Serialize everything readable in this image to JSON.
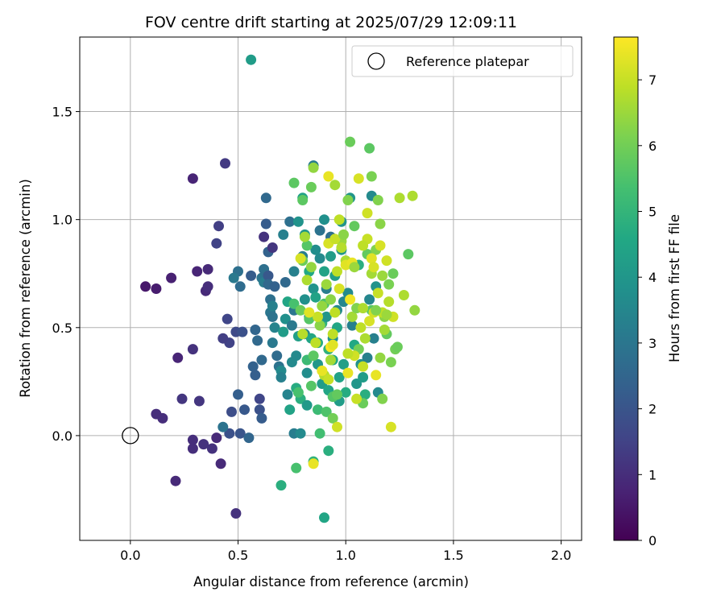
{
  "chart_data": {
    "type": "scatter",
    "title": "FOV centre drift starting at 2025/07/29 12:09:11",
    "xlabel": "Angular distance from reference (arcmin)",
    "ylabel": "Rotation from reference (arcmin)",
    "xlim": [
      -0.235,
      2.095
    ],
    "ylim": [
      -0.485,
      1.845
    ],
    "xticks": [
      "0.0",
      "0.5",
      "1.0",
      "1.5",
      "2.0"
    ],
    "yticks": [
      "0.0",
      "0.5",
      "1.0",
      "1.5"
    ],
    "grid": true,
    "legend": {
      "position": "top-right",
      "entries": [
        "Reference platepar"
      ]
    },
    "reference_point": {
      "x": 0.0,
      "y": 0.0,
      "label": "Reference platepar"
    },
    "colorbar": {
      "label": "Hours from first FF file",
      "colormap": "viridis",
      "range": [
        0,
        7.65
      ],
      "ticks": [
        "0",
        "1",
        "2",
        "3",
        "4",
        "5",
        "6",
        "7"
      ]
    },
    "points_note": "x (arcmin), y (arcmin), c (hours)",
    "points": [
      [
        0.07,
        0.69,
        0.5
      ],
      [
        0.12,
        0.68,
        0.6
      ],
      [
        0.19,
        0.73,
        0.7
      ],
      [
        0.29,
        1.19,
        0.8
      ],
      [
        0.31,
        0.76,
        0.8
      ],
      [
        0.36,
        0.77,
        0.9
      ],
      [
        0.35,
        0.67,
        0.9
      ],
      [
        0.36,
        0.69,
        1.0
      ],
      [
        0.22,
        0.36,
        0.8
      ],
      [
        0.29,
        0.4,
        1.1
      ],
      [
        0.12,
        0.1,
        1.0
      ],
      [
        0.15,
        0.08,
        1.0
      ],
      [
        0.24,
        0.17,
        1.2
      ],
      [
        0.32,
        0.16,
        1.2
      ],
      [
        0.29,
        -0.02,
        1.0
      ],
      [
        0.29,
        -0.06,
        1.0
      ],
      [
        0.34,
        -0.04,
        1.1
      ],
      [
        0.38,
        -0.06,
        1.1
      ],
      [
        0.4,
        -0.01,
        0.9
      ],
      [
        0.42,
        -0.13,
        0.9
      ],
      [
        0.21,
        -0.21,
        0.9
      ],
      [
        0.49,
        -0.36,
        1.1
      ],
      [
        0.44,
        1.26,
        1.3
      ],
      [
        0.41,
        0.97,
        1.4
      ],
      [
        0.4,
        0.89,
        1.5
      ],
      [
        0.45,
        0.54,
        1.6
      ],
      [
        0.46,
        0.43,
        1.5
      ],
      [
        0.43,
        0.45,
        1.4
      ],
      [
        0.49,
        0.48,
        1.7
      ],
      [
        0.47,
        0.11,
        1.8
      ],
      [
        0.46,
        0.01,
        1.9
      ],
      [
        0.51,
        0.01,
        2.0
      ],
      [
        0.43,
        0.04,
        2.9
      ],
      [
        0.5,
        0.76,
        2.8
      ],
      [
        0.48,
        0.73,
        3.1
      ],
      [
        0.51,
        0.69,
        2.7
      ],
      [
        0.52,
        0.48,
        1.9
      ],
      [
        0.5,
        0.19,
        2.3
      ],
      [
        0.53,
        0.12,
        2.1
      ],
      [
        0.55,
        -0.01,
        2.5
      ],
      [
        0.56,
        0.74,
        2.2
      ],
      [
        0.57,
        0.32,
        2.4
      ],
      [
        0.58,
        0.28,
        2.3
      ],
      [
        0.58,
        0.49,
        2.5
      ],
      [
        0.59,
        0.44,
        2.6
      ],
      [
        0.6,
        0.17,
        1.6
      ],
      [
        0.6,
        0.12,
        1.9
      ],
      [
        0.61,
        0.08,
        2.2
      ],
      [
        0.61,
        0.35,
        2.6
      ],
      [
        0.61,
        0.73,
        2.9
      ],
      [
        0.62,
        0.77,
        2.8
      ],
      [
        0.62,
        0.71,
        3.2
      ],
      [
        0.62,
        0.92,
        1.1
      ],
      [
        0.63,
        1.1,
        2.6
      ],
      [
        0.63,
        0.98,
        2.2
      ],
      [
        0.64,
        0.85,
        2.4
      ],
      [
        0.64,
        0.74,
        2.1
      ],
      [
        0.64,
        0.7,
        2.6
      ],
      [
        0.65,
        0.63,
        2.8
      ],
      [
        0.65,
        0.57,
        3.0
      ],
      [
        0.66,
        0.55,
        2.9
      ],
      [
        0.66,
        0.43,
        3.1
      ],
      [
        0.66,
        0.6,
        3.3
      ],
      [
        0.66,
        0.87,
        1.2
      ],
      [
        0.67,
        0.69,
        2.4
      ],
      [
        0.67,
        0.5,
        3.4
      ],
      [
        0.68,
        0.37,
        2.7
      ],
      [
        0.69,
        0.32,
        2.9
      ],
      [
        0.7,
        0.3,
        3.6
      ],
      [
        0.7,
        0.27,
        3.3
      ],
      [
        0.71,
        0.48,
        4.2
      ],
      [
        0.71,
        0.93,
        3.3
      ],
      [
        0.72,
        0.71,
        2.6
      ],
      [
        0.72,
        0.54,
        3.8
      ],
      [
        0.73,
        0.62,
        4.5
      ],
      [
        0.73,
        0.19,
        3.4
      ],
      [
        0.74,
        0.99,
        2.8
      ],
      [
        0.74,
        0.12,
        4.4
      ],
      [
        0.75,
        0.34,
        3.6
      ],
      [
        0.75,
        0.51,
        3.1
      ],
      [
        0.76,
        0.76,
        3.3
      ],
      [
        0.76,
        0.58,
        3.0
      ],
      [
        0.76,
        0.01,
        3.2
      ],
      [
        0.77,
        0.37,
        3.6
      ],
      [
        0.77,
        0.22,
        4.7
      ],
      [
        0.78,
        0.99,
        3.9
      ],
      [
        0.78,
        0.46,
        4.3
      ],
      [
        0.79,
        0.17,
        4.8
      ],
      [
        0.79,
        0.01,
        3.6
      ],
      [
        0.8,
        0.83,
        3.2
      ],
      [
        0.8,
        1.1,
        4.4
      ],
      [
        0.81,
        0.93,
        4.0
      ],
      [
        0.81,
        0.63,
        3.8
      ],
      [
        0.81,
        0.47,
        3.4
      ],
      [
        0.82,
        0.29,
        3.7
      ],
      [
        0.82,
        0.14,
        4.1
      ],
      [
        0.83,
        0.76,
        4.6
      ],
      [
        0.83,
        0.55,
        3.7
      ],
      [
        0.84,
        0.45,
        4.5
      ],
      [
        0.85,
        0.68,
        3.9
      ],
      [
        0.85,
        1.25,
        3.2
      ],
      [
        0.86,
        0.86,
        3.7
      ],
      [
        0.86,
        0.64,
        4.4
      ],
      [
        0.87,
        0.43,
        4.7
      ],
      [
        0.87,
        0.33,
        4.0
      ],
      [
        0.88,
        0.95,
        2.9
      ],
      [
        0.88,
        0.82,
        3.6
      ],
      [
        0.89,
        0.52,
        4.9
      ],
      [
        0.89,
        0.24,
        4.2
      ],
      [
        0.9,
        1.0,
        3.8
      ],
      [
        0.9,
        0.76,
        4.4
      ],
      [
        0.91,
        0.68,
        3.2
      ],
      [
        0.91,
        0.55,
        4.0
      ],
      [
        0.92,
        0.4,
        4.9
      ],
      [
        0.92,
        0.21,
        4.5
      ],
      [
        0.93,
        0.83,
        4.2
      ],
      [
        0.93,
        0.92,
        2.8
      ],
      [
        0.94,
        0.45,
        3.8
      ],
      [
        0.94,
        0.35,
        4.6
      ],
      [
        0.95,
        0.74,
        4.3
      ],
      [
        0.96,
        0.58,
        3.6
      ],
      [
        0.96,
        0.5,
        4.5
      ],
      [
        0.97,
        0.27,
        4.4
      ],
      [
        0.97,
        0.16,
        4.2
      ],
      [
        0.98,
        0.99,
        3.9
      ],
      [
        0.98,
        0.86,
        4.0
      ],
      [
        0.99,
        0.62,
        3.5
      ],
      [
        0.99,
        0.33,
        4.3
      ],
      [
        1.0,
        0.2,
        4.7
      ],
      [
        1.01,
        0.66,
        3.6
      ],
      [
        1.02,
        1.1,
        4.0
      ],
      [
        1.03,
        0.51,
        3.3
      ],
      [
        1.04,
        0.42,
        4.6
      ],
      [
        1.05,
        0.24,
        4.0
      ],
      [
        1.06,
        0.79,
        4.8
      ],
      [
        1.07,
        0.33,
        3.8
      ],
      [
        1.08,
        0.27,
        4.2
      ],
      [
        1.09,
        0.19,
        4.8
      ],
      [
        1.1,
        0.36,
        3.3
      ],
      [
        1.11,
        0.63,
        3.5
      ],
      [
        1.12,
        1.11,
        3.6
      ],
      [
        1.13,
        0.45,
        3.3
      ],
      [
        1.14,
        0.69,
        3.9
      ],
      [
        1.15,
        0.2,
        3.6
      ],
      [
        0.56,
        1.74,
        4.2
      ],
      [
        0.7,
        -0.23,
        4.8
      ],
      [
        0.9,
        -0.38,
        4.5
      ],
      [
        0.92,
        -0.07,
        4.8
      ],
      [
        0.77,
        -0.15,
        5.4
      ],
      [
        0.85,
        -0.12,
        4.9
      ],
      [
        0.88,
        0.01,
        5.3
      ],
      [
        0.87,
        0.12,
        5.2
      ],
      [
        0.9,
        0.61,
        5.5
      ],
      [
        0.91,
        0.11,
        5.5
      ],
      [
        0.94,
        0.18,
        5.6
      ],
      [
        0.96,
        0.19,
        5.8
      ],
      [
        0.83,
        0.54,
        5.6
      ],
      [
        0.84,
        0.23,
        5.6
      ],
      [
        0.82,
        0.35,
        5.2
      ],
      [
        0.85,
        0.37,
        5.7
      ],
      [
        0.76,
        1.17,
        5.7
      ],
      [
        0.8,
        1.09,
        5.7
      ],
      [
        0.84,
        1.15,
        5.9
      ],
      [
        0.8,
        0.81,
        5.9
      ],
      [
        0.76,
        0.61,
        5.4
      ],
      [
        0.78,
        0.2,
        5.4
      ],
      [
        0.79,
        0.58,
        5.9
      ],
      [
        0.82,
        0.88,
        5.6
      ],
      [
        1.02,
        1.36,
        5.9
      ],
      [
        1.11,
        1.33,
        5.7
      ],
      [
        1.12,
        1.2,
        6.1
      ],
      [
        1.01,
        1.09,
        6.2
      ],
      [
        1.04,
        0.97,
        5.8
      ],
      [
        1.1,
        0.84,
        5.8
      ],
      [
        1.12,
        0.58,
        5.6
      ],
      [
        1.14,
        0.86,
        6.2
      ],
      [
        1.15,
        1.09,
        6.2
      ],
      [
        1.16,
        0.98,
        6.3
      ],
      [
        1.17,
        0.74,
        6.5
      ],
      [
        1.18,
        0.55,
        6.3
      ],
      [
        1.19,
        0.47,
        5.8
      ],
      [
        1.2,
        0.7,
        6.1
      ],
      [
        1.21,
        0.34,
        6.1
      ],
      [
        1.22,
        0.75,
        5.9
      ],
      [
        1.23,
        0.4,
        6.0
      ],
      [
        1.24,
        0.41,
        5.9
      ],
      [
        1.25,
        1.1,
        6.7
      ],
      [
        1.27,
        0.65,
        6.7
      ],
      [
        1.29,
        0.84,
        5.7
      ],
      [
        1.31,
        1.11,
        6.7
      ],
      [
        1.32,
        0.58,
        6.4
      ],
      [
        1.17,
        0.17,
        6.2
      ],
      [
        1.08,
        0.15,
        5.9
      ],
      [
        1.06,
        0.4,
        6.0
      ],
      [
        1.03,
        0.55,
        6.6
      ],
      [
        1.0,
        0.81,
        6.7
      ],
      [
        0.98,
        0.9,
        6.5
      ],
      [
        0.96,
        0.76,
        6.9
      ],
      [
        0.95,
        1.16,
        6.6
      ],
      [
        0.94,
        0.47,
        6.9
      ],
      [
        0.93,
        0.35,
        6.6
      ],
      [
        0.92,
        0.89,
        7.2
      ],
      [
        0.91,
        0.7,
        6.5
      ],
      [
        0.9,
        0.28,
        6.8
      ],
      [
        0.89,
        0.6,
        6.4
      ],
      [
        0.88,
        0.51,
        6.3
      ],
      [
        0.87,
        0.55,
        7.0
      ],
      [
        0.86,
        0.43,
        6.9
      ],
      [
        0.85,
        1.24,
        6.4
      ],
      [
        0.84,
        0.78,
        6.4
      ],
      [
        0.83,
        0.57,
        7.3
      ],
      [
        0.82,
        0.72,
        6.7
      ],
      [
        0.81,
        0.92,
        6.6
      ],
      [
        0.8,
        0.47,
        6.8
      ],
      [
        0.79,
        0.82,
        7.2
      ],
      [
        0.94,
        0.08,
        6.0
      ],
      [
        0.92,
        0.26,
        7.0
      ],
      [
        0.96,
        0.04,
        7.1
      ],
      [
        0.85,
        -0.13,
        7.4
      ],
      [
        0.89,
        0.3,
        7.4
      ],
      [
        0.92,
        1.2,
        7.4
      ],
      [
        0.93,
        0.41,
        7.6
      ],
      [
        0.94,
        0.42,
        7.3
      ],
      [
        0.95,
        0.91,
        7.0
      ],
      [
        0.97,
        0.68,
        7.2
      ],
      [
        0.98,
        0.87,
        6.8
      ],
      [
        1.0,
        0.79,
        7.3
      ],
      [
        1.01,
        0.29,
        7.4
      ],
      [
        1.02,
        0.63,
        7.5
      ],
      [
        1.03,
        0.8,
        7.4
      ],
      [
        1.04,
        0.37,
        7.1
      ],
      [
        1.05,
        0.17,
        7.0
      ],
      [
        1.06,
        1.19,
        7.2
      ],
      [
        1.07,
        0.5,
        6.9
      ],
      [
        1.08,
        0.32,
        7.0
      ],
      [
        1.09,
        0.45,
        6.7
      ],
      [
        1.1,
        0.91,
        7.0
      ],
      [
        1.11,
        0.53,
        7.2
      ],
      [
        1.12,
        0.82,
        7.3
      ],
      [
        1.13,
        0.57,
        7.1
      ],
      [
        1.14,
        0.28,
        7.4
      ],
      [
        1.15,
        0.66,
        7.0
      ],
      [
        1.16,
        0.88,
        7.2
      ],
      [
        1.17,
        0.57,
        6.9
      ],
      [
        1.18,
        0.49,
        6.6
      ],
      [
        1.19,
        0.81,
        7.1
      ],
      [
        1.2,
        0.62,
        6.8
      ],
      [
        1.21,
        0.04,
        7.2
      ],
      [
        1.22,
        0.55,
        7.1
      ],
      [
        1.1,
        1.03,
        7.1
      ],
      [
        1.12,
        0.75,
        6.6
      ],
      [
        0.97,
        1.0,
        6.9
      ],
      [
        1.05,
        0.59,
        6.2
      ],
      [
        1.08,
        0.88,
        6.9
      ],
      [
        1.13,
        0.78,
        7.2
      ],
      [
        0.99,
        0.93,
        6.3
      ],
      [
        0.93,
        0.63,
        6.3
      ],
      [
        0.95,
        0.57,
        6.9
      ],
      [
        1.01,
        0.38,
        6.9
      ],
      [
        1.08,
        0.59,
        6.7
      ],
      [
        1.04,
        0.78,
        6.5
      ],
      [
        1.14,
        0.58,
        6.2
      ],
      [
        1.16,
        0.36,
        6.4
      ],
      [
        1.19,
        0.56,
        6.5
      ]
    ]
  }
}
